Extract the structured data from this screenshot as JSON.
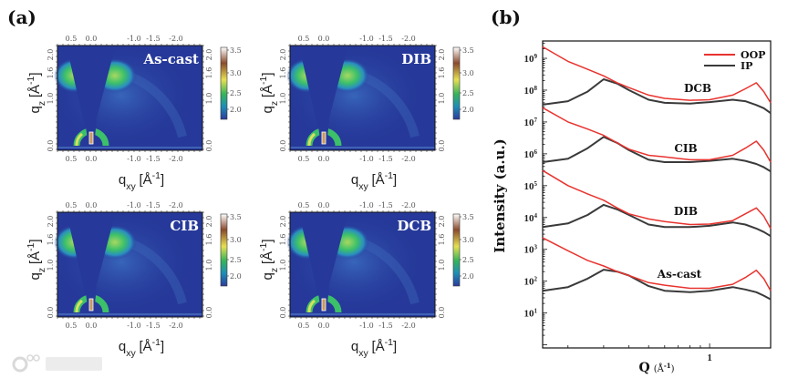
{
  "panel_labels": {
    "a": "(a)",
    "b": "(b)"
  },
  "giwaxs": {
    "samples": [
      "As-cast",
      "DIB",
      "CIB",
      "DCB"
    ],
    "qxy_ticks": [
      "0.5",
      "0.0",
      "-1.0",
      "-1.5",
      "-2.0"
    ],
    "qz_ticks": [
      "0.0",
      "1.0",
      "1.6",
      "2.0"
    ],
    "colorbar_ticks": [
      "3.5",
      "3.0",
      "2.5",
      "2.0"
    ],
    "xlabel": {
      "base": "q",
      "sub": "xy",
      "unit": "[Å",
      "exp": "-1",
      "close": "]"
    },
    "ylabel": {
      "base": "q",
      "sub": "z",
      "unit": "[Å",
      "exp": "-1",
      "close": "]"
    },
    "colors": {
      "background": "#26399a",
      "lobe": "#3cc06a",
      "peak": "#f0e65a"
    }
  },
  "chart_data": {
    "type": "line",
    "title": "",
    "xlabel": {
      "base": "Q",
      "unit": "(Å",
      "exp": "-1",
      "close": ")"
    },
    "ylabel": "Intensity (a.u.)",
    "xscale": "log",
    "yscale": "log",
    "xlim": [
      0.15,
      2.0
    ],
    "ylim": [
      0.8,
      3500000000.0
    ],
    "x_tick_labels": [
      "1"
    ],
    "y_tick_labels": [
      {
        "base": "10",
        "exp": "1"
      },
      {
        "base": "10",
        "exp": "2"
      },
      {
        "base": "10",
        "exp": "3"
      },
      {
        "base": "10",
        "exp": "4"
      },
      {
        "base": "10",
        "exp": "5"
      },
      {
        "base": "10",
        "exp": "6"
      },
      {
        "base": "10",
        "exp": "7"
      },
      {
        "base": "10",
        "exp": "8"
      },
      {
        "base": "10",
        "exp": "9"
      }
    ],
    "legend": {
      "placement": "top-right",
      "entries": [
        {
          "name": "OOP",
          "color": "#e8332e"
        },
        {
          "name": "IP",
          "color": "#3a3a3a"
        }
      ]
    },
    "x": [
      0.15,
      0.2,
      0.25,
      0.3,
      0.35,
      0.4,
      0.5,
      0.6,
      0.8,
      1.0,
      1.3,
      1.5,
      1.7,
      1.85,
      2.0
    ],
    "groups": [
      {
        "label": "DCB",
        "OOP": [
          2300000000.0,
          800000000.0,
          450000000.0,
          280000000.0,
          170000000.0,
          120000000.0,
          70000000.0,
          55000000.0,
          48000000.0,
          50000000.0,
          70000000.0,
          110000000.0,
          170000000.0,
          90000000.0,
          40000000.0
        ],
        "IP": [
          35000000.0,
          45000000.0,
          90000000.0,
          220000000.0,
          160000000.0,
          100000000.0,
          50000000.0,
          40000000.0,
          38000000.0,
          42000000.0,
          50000000.0,
          45000000.0,
          34000000.0,
          27000000.0,
          19000000.0
        ]
      },
      {
        "label": "CIB",
        "OOP": [
          28000000.0,
          10000000.0,
          6000000.0,
          3800000.0,
          2200000.0,
          1400000.0,
          900000.0,
          800000.0,
          650000.0,
          650000.0,
          900000.0,
          1500000.0,
          2500000.0,
          1300000.0,
          550000.0
        ],
        "IP": [
          550000.0,
          700000.0,
          1500000.0,
          3400000.0,
          2200000.0,
          1300000.0,
          650000.0,
          550000.0,
          550000.0,
          600000.0,
          700000.0,
          600000.0,
          480000.0,
          380000.0,
          280000.0
        ]
      },
      {
        "label": "DIB",
        "OOP": [
          300000.0,
          100000.0,
          55000.0,
          35000.0,
          20000.0,
          13000.0,
          9000.0,
          7500.0,
          6000.0,
          6200.0,
          8000.0,
          13000.0,
          20000.0,
          11000.0,
          4500.0
        ],
        "IP": [
          5000.0,
          6500.0,
          12000.0,
          25000.0,
          18000.0,
          12000.0,
          6000.0,
          5000.0,
          5000.0,
          5500.0,
          7000.0,
          6000.0,
          4500.0,
          3500.0,
          2600.0
        ]
      },
      {
        "label": "As-cast",
        "OOP": [
          2300,
          900,
          450,
          300,
          200,
          150,
          90,
          75,
          60,
          60,
          80,
          130,
          220,
          120,
          50
        ],
        "IP": [
          50,
          65,
          120,
          230,
          200,
          150,
          70,
          50,
          45,
          50,
          65,
          55,
          45,
          35,
          27
        ]
      }
    ]
  },
  "watermark": "大数跨境"
}
